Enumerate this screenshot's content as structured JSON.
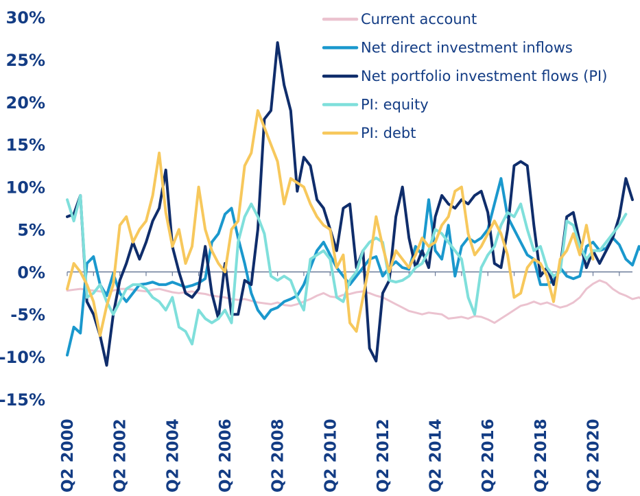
{
  "chart_data": {
    "type": "line",
    "title": "",
    "xlabel": "",
    "ylabel": "",
    "ylim": [
      -15,
      30
    ],
    "yticks": [
      30,
      25,
      20,
      15,
      10,
      5,
      0,
      -5,
      -10,
      -15
    ],
    "ytick_labels": [
      "30%",
      "25%",
      "20%",
      "15%",
      "10%",
      "5%",
      "0%",
      "-5%",
      "-10%",
      "-15%"
    ],
    "x_labels": [
      "Q2 2000",
      "Q2 2002",
      "Q2 2004",
      "Q2 2006",
      "Q2 2008",
      "Q2 2010",
      "Q2 2012",
      "Q2 2014",
      "Q2 2016",
      "Q2 2018",
      "Q2 2020"
    ],
    "x_label_index": [
      0,
      8,
      16,
      24,
      32,
      40,
      48,
      56,
      64,
      72,
      80
    ],
    "legend_position": "top-right",
    "series": [
      {
        "name": "Current account",
        "color": "#EBC2CF",
        "values": [
          -2.2,
          -2.1,
          -2.0,
          -2.1,
          -2.2,
          -2.3,
          -2.4,
          -2.2,
          -2.0,
          -2.0,
          -2.1,
          -2.2,
          -2.3,
          -2.1,
          -2.0,
          -2.2,
          -2.4,
          -2.5,
          -2.4,
          -2.3,
          -2.5,
          -2.6,
          -2.8,
          -2.9,
          -3.0,
          -3.2,
          -3.3,
          -3.2,
          -3.4,
          -3.6,
          -3.7,
          -3.8,
          -3.6,
          -3.9,
          -4.0,
          -3.8,
          -3.5,
          -3.2,
          -2.8,
          -2.5,
          -2.9,
          -3.0,
          -2.7,
          -2.6,
          -2.4,
          -2.3,
          -2.5,
          -2.8,
          -3.0,
          -3.4,
          -3.8,
          -4.2,
          -4.6,
          -4.8,
          -5.0,
          -4.8,
          -4.9,
          -5.0,
          -5.5,
          -5.4,
          -5.3,
          -5.5,
          -5.2,
          -5.3,
          -5.6,
          -6.0,
          -5.5,
          -5.0,
          -4.5,
          -4.0,
          -3.8,
          -3.5,
          -3.8,
          -3.6,
          -3.9,
          -4.2,
          -4.0,
          -3.6,
          -3.0,
          -2.0,
          -1.4,
          -1.0,
          -1.3,
          -2.0,
          -2.5,
          -2.8,
          -3.2,
          -3.0,
          -3.5,
          -3.8,
          -4.2
        ]
      },
      {
        "name": "Net direct investment inflows",
        "color": "#1A98CD",
        "values": [
          -9.8,
          -6.5,
          -7.2,
          1.0,
          1.8,
          -1.5,
          -2.8,
          -0.2,
          -2.5,
          -3.5,
          -2.5,
          -1.5,
          -1.4,
          -1.2,
          -1.5,
          -1.5,
          -1.2,
          -1.5,
          -1.8,
          -1.6,
          -1.3,
          -0.8,
          3.5,
          4.5,
          6.8,
          7.5,
          4.0,
          1.0,
          -2.5,
          -4.5,
          -5.5,
          -4.5,
          -4.2,
          -3.5,
          -3.2,
          -2.8,
          -1.5,
          0.5,
          2.5,
          3.5,
          2.0,
          0.5,
          -0.5,
          -1.5,
          -0.5,
          0.5,
          1.5,
          1.8,
          -0.5,
          0.5,
          1.2,
          0.5,
          0.3,
          3.0,
          2.0,
          8.5,
          2.5,
          1.5,
          5.5,
          -0.5,
          3.0,
          4.0,
          3.5,
          4.0,
          5.0,
          8.0,
          11.0,
          6.5,
          5.0,
          3.5,
          2.0,
          1.5,
          -1.5,
          -1.5,
          -1.0,
          0.5,
          -0.5,
          -0.8,
          -0.5,
          3.0,
          3.5,
          2.5,
          2.8,
          4.0,
          3.2,
          1.5,
          0.8,
          3.0,
          1.5,
          -2.5,
          -4.0
        ]
      },
      {
        "name": "Net portfolio investment flows (PI)",
        "color": "#0F2D6B",
        "values": [
          6.5,
          6.8,
          9.0,
          -3.5,
          -5.0,
          -7.5,
          -11.0,
          -5.0,
          -1.0,
          1.0,
          3.5,
          1.5,
          3.5,
          6.0,
          7.5,
          12.0,
          3.0,
          0.0,
          -2.5,
          -3.0,
          -2.0,
          3.0,
          -2.5,
          -5.5,
          1.0,
          -5.0,
          -5.0,
          -1.0,
          -1.5,
          5.0,
          18.0,
          19.0,
          27.0,
          22.0,
          19.0,
          9.5,
          13.5,
          12.5,
          8.5,
          7.5,
          5.0,
          2.5,
          7.5,
          8.0,
          0.5,
          2.5,
          -9.0,
          -10.5,
          -2.5,
          -1.0,
          6.5,
          10.0,
          4.0,
          0.5,
          2.5,
          0.5,
          6.5,
          9.0,
          8.0,
          7.5,
          8.5,
          8.0,
          9.0,
          9.5,
          7.0,
          1.0,
          0.5,
          5.0,
          12.5,
          13.0,
          12.5,
          5.5,
          -0.5,
          0.5,
          -1.5,
          0.5,
          6.5,
          7.0,
          3.5,
          0.5,
          2.5,
          1.0,
          2.5,
          4.0,
          6.5,
          11.0,
          8.5
        ]
      },
      {
        "name": "PI: equity",
        "color": "#7FDFDB",
        "values": [
          8.5,
          6.0,
          9.0,
          -3.0,
          -2.5,
          -1.5,
          -3.5,
          -5.0,
          -3.5,
          -2.0,
          -1.5,
          -1.5,
          -2.0,
          -3.0,
          -3.5,
          -4.5,
          -3.0,
          -6.5,
          -7.0,
          -8.5,
          -4.5,
          -5.5,
          -6.0,
          -5.5,
          -4.5,
          -6.0,
          3.5,
          6.5,
          8.0,
          6.5,
          4.5,
          -0.5,
          -1.0,
          -0.5,
          -1.0,
          -3.0,
          -4.5,
          1.5,
          2.0,
          2.5,
          1.5,
          -3.0,
          -3.5,
          -1.0,
          0.0,
          2.5,
          3.5,
          4.0,
          3.5,
          -1.0,
          -1.2,
          -1.0,
          -0.5,
          0.5,
          1.0,
          2.5,
          5.0,
          4.5,
          3.5,
          2.5,
          1.5,
          -3.0,
          -5.0,
          0.5,
          2.0,
          3.0,
          5.5,
          7.0,
          6.5,
          8.0,
          5.0,
          2.5,
          3.0,
          0.5,
          -0.5,
          0.0,
          6.0,
          5.5,
          3.0,
          1.5,
          2.5,
          2.5,
          3.5,
          4.5,
          5.5,
          6.8
        ]
      },
      {
        "name": "PI: debt",
        "color": "#F7C85C",
        "values": [
          -2.0,
          1.0,
          0.0,
          -1.5,
          -3.5,
          -7.5,
          -4.0,
          -1.5,
          5.5,
          6.5,
          3.5,
          5.0,
          6.0,
          9.0,
          14.0,
          7.0,
          3.0,
          5.0,
          1.0,
          3.0,
          10.0,
          5.0,
          2.5,
          1.0,
          0.0,
          5.0,
          6.0,
          12.5,
          14.0,
          19.0,
          17.0,
          15.0,
          13.0,
          8.0,
          11.0,
          10.5,
          10.0,
          8.0,
          6.5,
          5.5,
          5.0,
          0.5,
          2.0,
          -6.0,
          -7.0,
          -3.0,
          1.0,
          6.5,
          3.0,
          0.0,
          2.5,
          1.5,
          0.5,
          2.0,
          4.0,
          3.0,
          3.5,
          5.5,
          6.5,
          9.5,
          10.0,
          4.5,
          2.0,
          3.0,
          4.5,
          6.0,
          4.5,
          2.0,
          -3.0,
          -2.5,
          0.5,
          1.5,
          1.0,
          -0.5,
          -3.5,
          1.5,
          2.5,
          4.5,
          2.0,
          5.5,
          1.5
        ]
      }
    ]
  }
}
